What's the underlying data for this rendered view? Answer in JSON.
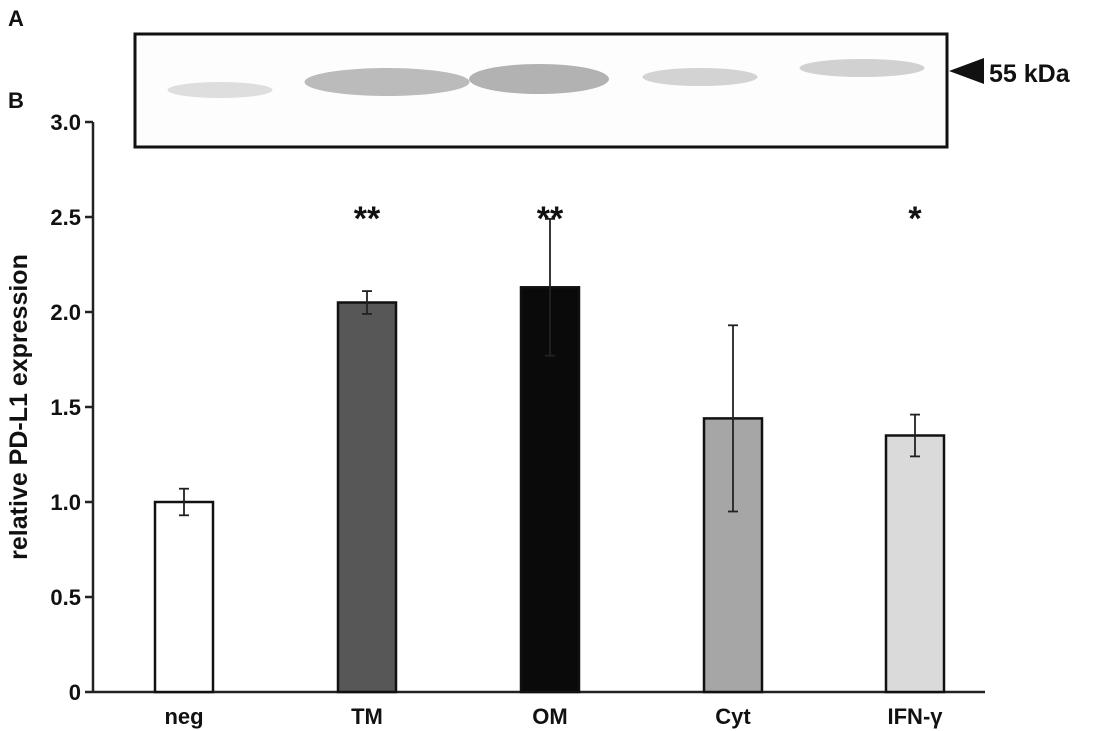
{
  "panels": {
    "a": "A",
    "b": "B"
  },
  "blot": {
    "marker_label": "55 kDa",
    "band_intensity": [
      0.3,
      0.62,
      0.7,
      0.4,
      0.42
    ]
  },
  "chart_data": {
    "type": "bar",
    "title": "",
    "xlabel": "",
    "ylabel": "relative PD-L1 expression",
    "ylim": [
      0,
      3
    ],
    "yticks": [
      0,
      0.5,
      1,
      1.5,
      2,
      2.5,
      3
    ],
    "ytick_labels": [
      "0",
      "0.5",
      "1.0",
      "1.5",
      "2.0",
      "2.5",
      "3.0"
    ],
    "categories": [
      "neg",
      "TM",
      "OM",
      "Cyt",
      "IFN-γ"
    ],
    "values": [
      1.0,
      2.05,
      2.13,
      1.44,
      1.35
    ],
    "errors": [
      0.07,
      0.06,
      0.36,
      0.49,
      0.11
    ],
    "significance": [
      "",
      "**",
      "**",
      "",
      "*"
    ],
    "colors": [
      "#ffffff",
      "#575757",
      "#0a0a0a",
      "#a6a6a6",
      "#dadada"
    ],
    "grid": false,
    "legend": "none"
  }
}
